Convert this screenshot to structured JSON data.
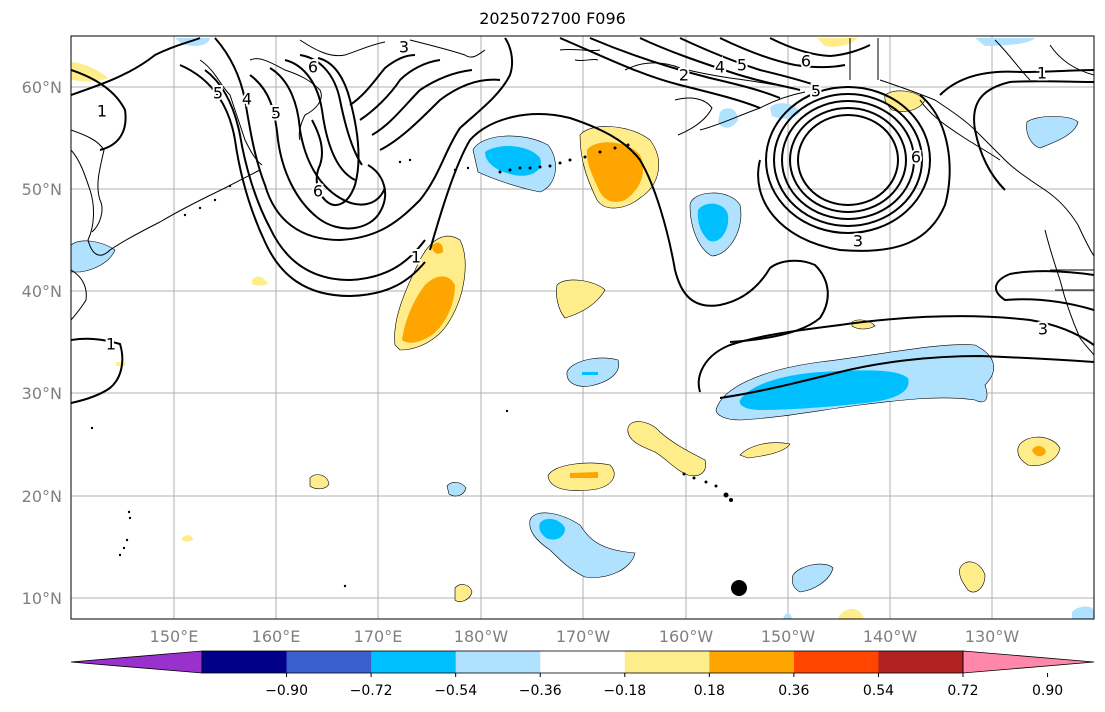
{
  "title": "2025072700 F096",
  "map": {
    "lon_labels": [
      "150°E",
      "160°E",
      "170°E",
      "180°W",
      "170°W",
      "160°W",
      "150°W",
      "140°W",
      "130°W"
    ],
    "lat_labels": [
      "60°N",
      "50°N",
      "40°N",
      "30°N",
      "20°N",
      "10°N"
    ],
    "contour_labels": [
      "3",
      "2",
      "4",
      "5",
      "6",
      "5",
      "1",
      "4",
      "5",
      "6",
      "1",
      "6",
      "1",
      "3",
      "3",
      "1",
      "6",
      "5"
    ],
    "marker": "black-dot"
  },
  "colorbar": {
    "ticks": [
      "−0.90",
      "−0.72",
      "−0.54",
      "−0.36",
      "−0.18",
      "0.18",
      "0.36",
      "0.54",
      "0.72",
      "0.90"
    ],
    "colors": [
      "#9932cc",
      "#00008b",
      "#3a5fcd",
      "#00bfff",
      "#b0e2ff",
      "#ffffff",
      "#ffec8b",
      "#ffa500",
      "#ff4500",
      "#b22222",
      "#ff88aa"
    ]
  }
}
